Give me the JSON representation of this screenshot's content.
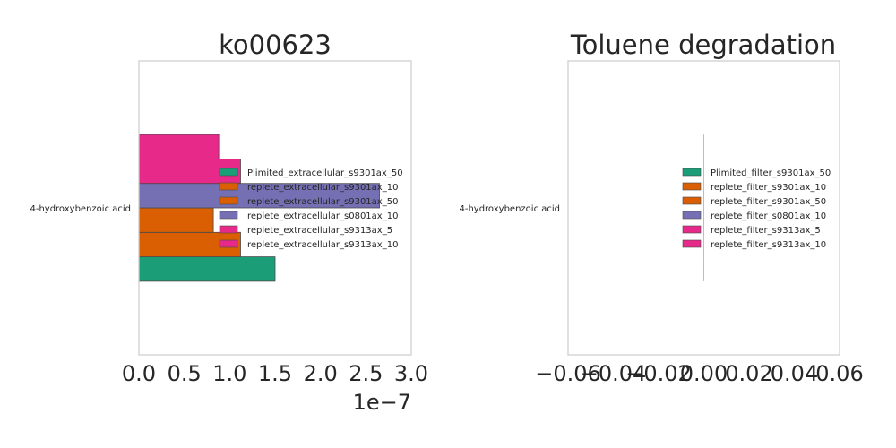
{
  "chart_data": [
    {
      "type": "bar",
      "orientation": "horizontal",
      "title": "ko00623",
      "xlabel": "",
      "ylabel": "",
      "categories": [
        "4-hydroxybenzoic acid"
      ],
      "xlim": [
        0,
        3e-07
      ],
      "xticks": [
        "0.0",
        "0.5",
        "1.0",
        "1.5",
        "2.0",
        "2.5",
        "3.0"
      ],
      "x_offset_label": "1e−7",
      "grid": false,
      "legend_position": "right",
      "series": [
        {
          "name": "Plimited_extracellular_s9301ax_50",
          "color": "#1b9e77",
          "values": [
            1.5e-07
          ]
        },
        {
          "name": "replete_extracellular_s9301ax_10",
          "color": "#d95f02",
          "values": [
            1.12e-07
          ]
        },
        {
          "name": "replete_extracellular_s9301ax_50",
          "color": "#d95f02",
          "values": [
            8.2e-08
          ]
        },
        {
          "name": "replete_extracellular_s0801ax_10",
          "color": "#7570b3",
          "values": [
            2.65e-07
          ]
        },
        {
          "name": "replete_extracellular_s9313ax_5",
          "color": "#e7298a",
          "values": [
            1.12e-07
          ]
        },
        {
          "name": "replete_extracellular_s9313ax_10",
          "color": "#e7298a",
          "values": [
            8.8e-08
          ]
        }
      ]
    },
    {
      "type": "bar",
      "orientation": "horizontal",
      "title": "Toluene degradation",
      "xlabel": "",
      "ylabel": "",
      "categories": [
        "4-hydroxybenzoic acid"
      ],
      "xlim": [
        -0.06,
        0.06
      ],
      "xticks": [
        "−0.06",
        "−0.04",
        "−0.02",
        "0.00",
        "0.02",
        "0.04",
        "0.06"
      ],
      "grid": false,
      "legend_position": "right",
      "series": [
        {
          "name": "Plimited_filter_s9301ax_50",
          "color": "#1b9e77",
          "values": [
            0
          ]
        },
        {
          "name": "replete_filter_s9301ax_10",
          "color": "#d95f02",
          "values": [
            0
          ]
        },
        {
          "name": "replete_filter_s9301ax_50",
          "color": "#d95f02",
          "values": [
            0
          ]
        },
        {
          "name": "replete_filter_s0801ax_10",
          "color": "#7570b3",
          "values": [
            0
          ]
        },
        {
          "name": "replete_filter_s9313ax_5",
          "color": "#e7298a",
          "values": [
            0
          ]
        },
        {
          "name": "replete_filter_s9313ax_10",
          "color": "#e7298a",
          "values": [
            0
          ]
        }
      ]
    }
  ]
}
